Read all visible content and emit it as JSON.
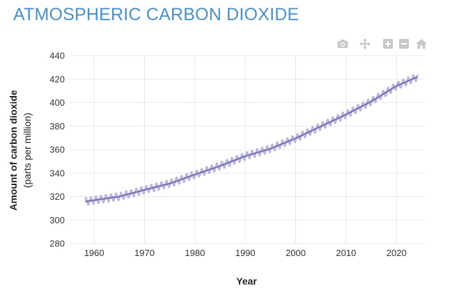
{
  "header": {
    "title": "ATMOSPHERIC CARBON DIOXIDE"
  },
  "toolbar": {
    "items": [
      {
        "icon": "camera-icon"
      },
      {
        "icon": "pan-icon"
      },
      {
        "icon": "zoom-in-icon"
      },
      {
        "icon": "zoom-out-icon"
      },
      {
        "icon": "home-icon"
      }
    ]
  },
  "chart_data": {
    "type": "line",
    "title": "ATMOSPHERIC CARBON DIOXIDE",
    "xlabel": "Year",
    "ylabel": "Amount of carbon dioxide",
    "ylabel_sub": "(parts per million)",
    "xlim": [
      1955,
      2025.5
    ],
    "ylim": [
      280,
      440
    ],
    "x_ticks": [
      1960,
      1970,
      1980,
      1990,
      2000,
      2010,
      2020
    ],
    "y_ticks": [
      280,
      300,
      320,
      340,
      360,
      380,
      400,
      420,
      440
    ],
    "grid": true,
    "legend": "none",
    "series": [
      {
        "role": "monthly",
        "color": "#b9b6dc",
        "seasonal_amplitude_ppm": 3.2,
        "x": [
          1958.2,
          1960,
          1965,
          1970,
          1975,
          1980,
          1985,
          1990,
          1995,
          2000,
          2005,
          2010,
          2015,
          2020,
          2024.2
        ],
        "y": [
          315.7,
          316.9,
          320.0,
          325.7,
          331.1,
          338.7,
          346.1,
          354.4,
          360.8,
          369.6,
          379.8,
          389.9,
          401.0,
          414.2,
          422.0
        ]
      },
      {
        "role": "trend",
        "color": "#7a74b8",
        "x": [
          1958.2,
          1960,
          1965,
          1970,
          1975,
          1980,
          1985,
          1990,
          1995,
          2000,
          2005,
          2010,
          2015,
          2020,
          2024.2
        ],
        "y": [
          315.7,
          316.9,
          320.0,
          325.7,
          331.1,
          338.7,
          346.1,
          354.4,
          360.8,
          369.6,
          379.8,
          389.9,
          401.0,
          414.2,
          422.0
        ]
      }
    ]
  }
}
